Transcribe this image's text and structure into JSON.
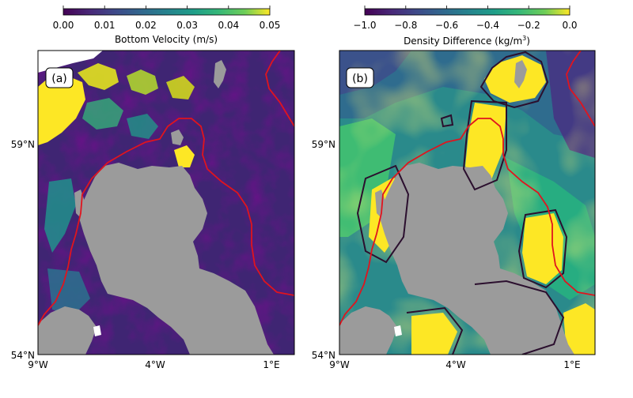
{
  "panel_a": {
    "label": "(a)",
    "colorbar": {
      "title": "Bottom Velocity (m/s)",
      "ticks": [
        "0.00",
        "0.01",
        "0.02",
        "0.03",
        "0.04",
        "0.05"
      ],
      "colormap": "viridis",
      "min": 0.0,
      "max": 0.05
    }
  },
  "panel_b": {
    "label": "(b)",
    "colorbar": {
      "title_main": "Density Difference (kg/m",
      "title_sup": "3",
      "title_close": ")",
      "ticks": [
        "−1.0",
        "−0.8",
        "−0.6",
        "−0.4",
        "−0.2",
        "0.0"
      ],
      "colormap": "viridis",
      "min": -1.0,
      "max": 0.0
    }
  },
  "axes": {
    "x_ticks": [
      "9°W",
      "4°W",
      "1°E"
    ],
    "y_ticks": [
      "59°N",
      "54°N"
    ]
  },
  "colors": {
    "land": "#9b9b9b",
    "red_contour": "#e0141e",
    "dark_contour": "#2b0f2e",
    "viridis_low": "#440154",
    "viridis_mid": "#21918c",
    "viridis_high": "#fde725"
  }
}
